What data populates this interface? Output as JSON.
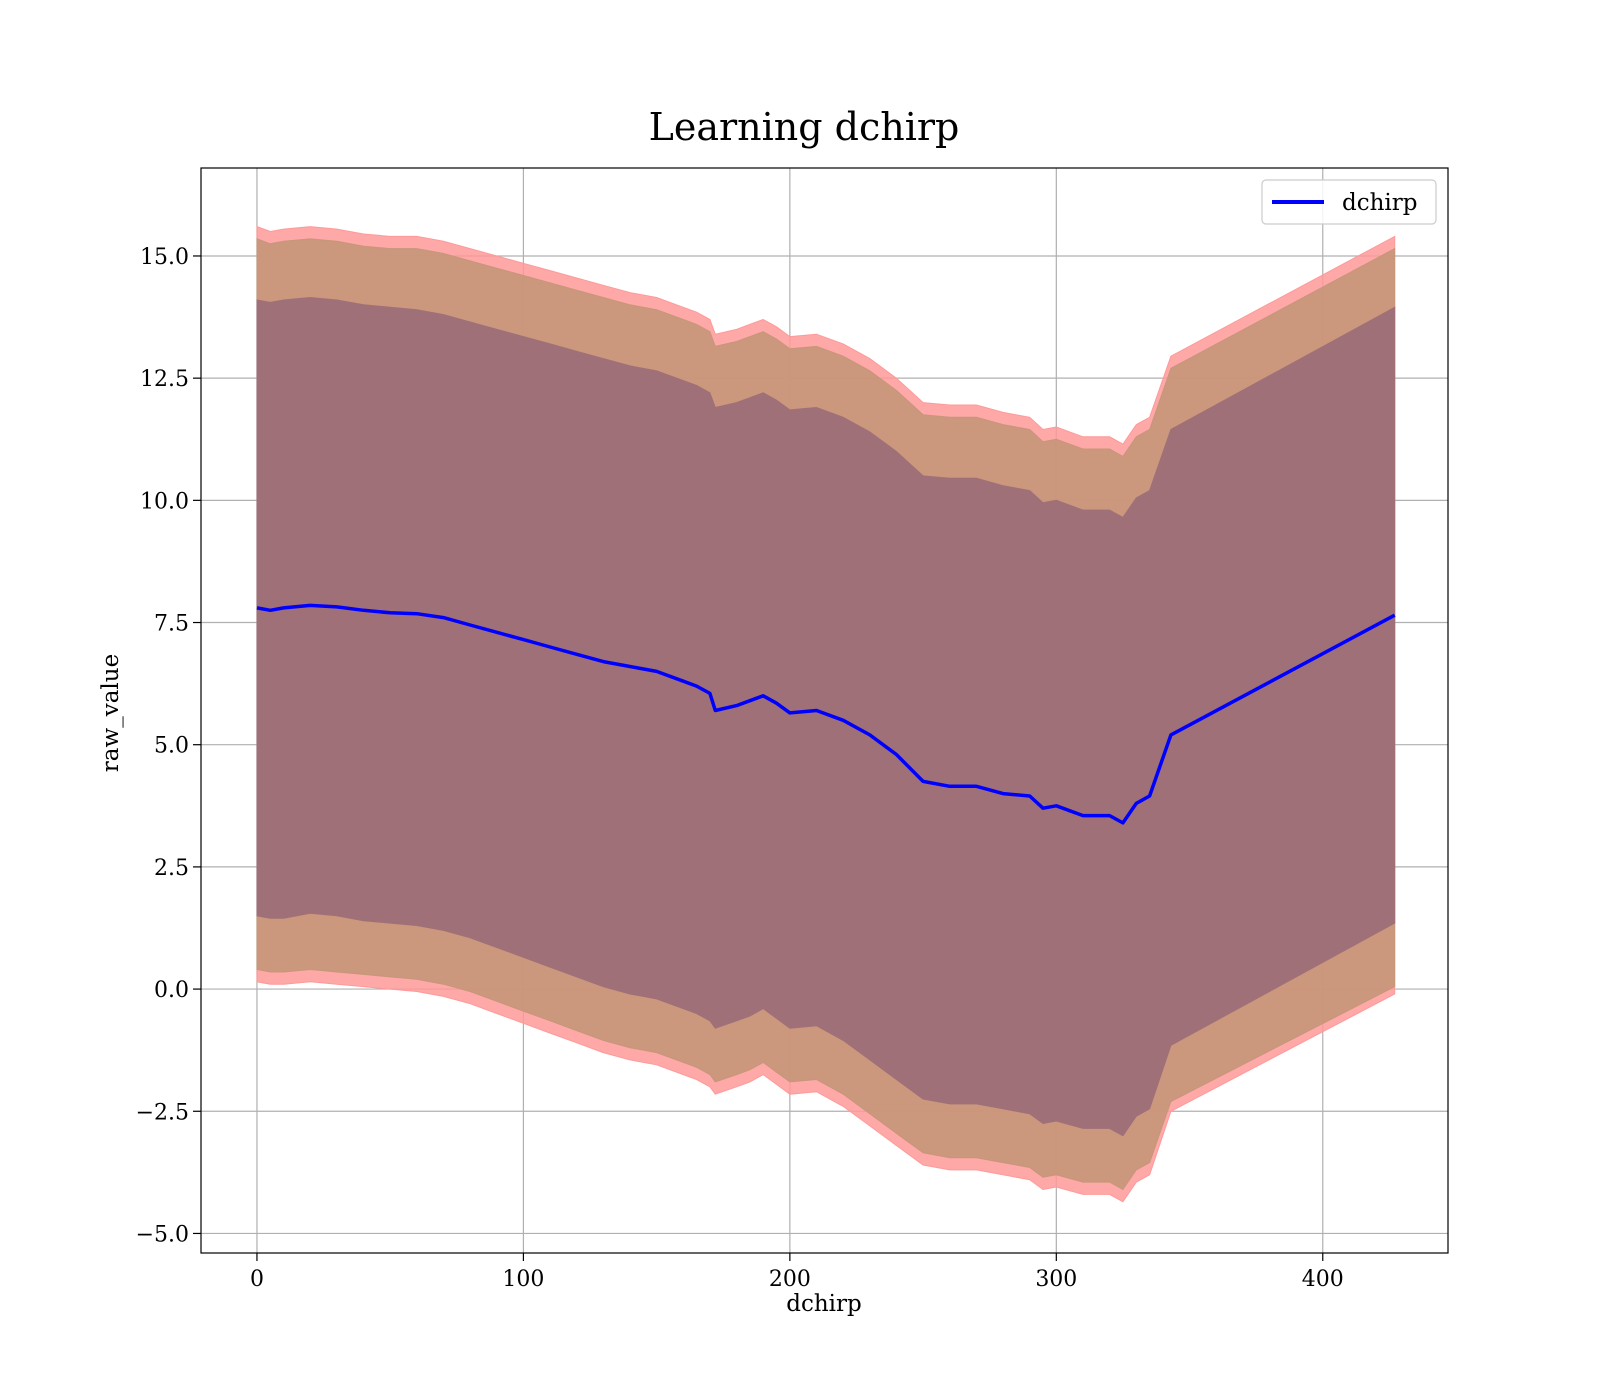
{
  "chart_data": {
    "type": "line",
    "title": "Learning dchirp",
    "xlabel": "dchirp",
    "ylabel": "raw_value",
    "xlim": [
      -21,
      447
    ],
    "ylim": [
      -5.4,
      16.8
    ],
    "x_ticks": [
      0,
      100,
      200,
      300,
      400
    ],
    "x_tick_labels": [
      "0",
      "100",
      "200",
      "300",
      "400"
    ],
    "y_ticks": [
      -5.0,
      -2.5,
      0.0,
      2.5,
      5.0,
      7.5,
      10.0,
      12.5,
      15.0
    ],
    "y_tick_labels": [
      "−5.0",
      "−2.5",
      "0.0",
      "2.5",
      "5.0",
      "7.5",
      "10.0",
      "12.5",
      "15.0"
    ],
    "grid": true,
    "legend": {
      "position": "top-right",
      "entries": [
        "dchirp"
      ]
    },
    "colors": {
      "line": "#0000ff",
      "band_outer": "#ff9999",
      "band_middle": "#c8967a",
      "band_inner": "#a07078"
    },
    "series": [
      {
        "name": "dchirp",
        "x": [
          0,
          5,
          10,
          20,
          30,
          40,
          50,
          60,
          70,
          80,
          90,
          100,
          110,
          120,
          130,
          140,
          150,
          160,
          165,
          170,
          172,
          180,
          185,
          190,
          195,
          200,
          210,
          220,
          230,
          240,
          250,
          260,
          270,
          280,
          290,
          295,
          300,
          310,
          320,
          325,
          330,
          335,
          343,
          427
        ],
        "y": [
          7.8,
          7.75,
          7.8,
          7.85,
          7.82,
          7.75,
          7.7,
          7.68,
          7.6,
          7.45,
          7.3,
          7.15,
          7.0,
          6.85,
          6.7,
          6.6,
          6.5,
          6.3,
          6.2,
          6.05,
          5.7,
          5.8,
          5.9,
          6.0,
          5.85,
          5.65,
          5.7,
          5.5,
          5.2,
          4.8,
          4.25,
          4.15,
          4.15,
          4.0,
          3.95,
          3.7,
          3.75,
          3.55,
          3.55,
          3.4,
          3.8,
          3.95,
          5.2,
          7.65
        ]
      }
    ],
    "bands": [
      {
        "level": "outer",
        "lower": [
          0.15,
          0.1,
          0.1,
          0.15,
          0.1,
          0.05,
          0.0,
          -0.05,
          -0.15,
          -0.3,
          -0.5,
          -0.7,
          -0.9,
          -1.1,
          -1.3,
          -1.45,
          -1.55,
          -1.75,
          -1.85,
          -2.0,
          -2.15,
          -2.0,
          -1.9,
          -1.75,
          -1.95,
          -2.15,
          -2.1,
          -2.4,
          -2.8,
          -3.2,
          -3.6,
          -3.7,
          -3.7,
          -3.8,
          -3.9,
          -4.1,
          -4.05,
          -4.2,
          -4.2,
          -4.35,
          -3.95,
          -3.8,
          -2.5,
          -0.1
        ],
        "upper": [
          15.6,
          15.5,
          15.55,
          15.6,
          15.55,
          15.45,
          15.4,
          15.4,
          15.3,
          15.15,
          15.0,
          14.85,
          14.7,
          14.55,
          14.4,
          14.25,
          14.15,
          13.95,
          13.85,
          13.7,
          13.4,
          13.5,
          13.6,
          13.7,
          13.55,
          13.35,
          13.4,
          13.2,
          12.9,
          12.5,
          12.0,
          11.95,
          11.95,
          11.8,
          11.7,
          11.45,
          11.5,
          11.3,
          11.3,
          11.15,
          11.55,
          11.7,
          12.95,
          15.4
        ]
      },
      {
        "level": "middle",
        "lower": [
          0.4,
          0.35,
          0.35,
          0.4,
          0.35,
          0.3,
          0.25,
          0.2,
          0.1,
          -0.05,
          -0.25,
          -0.45,
          -0.65,
          -0.85,
          -1.05,
          -1.2,
          -1.3,
          -1.5,
          -1.6,
          -1.75,
          -1.9,
          -1.75,
          -1.65,
          -1.5,
          -1.7,
          -1.9,
          -1.85,
          -2.15,
          -2.55,
          -2.95,
          -3.35,
          -3.45,
          -3.45,
          -3.55,
          -3.65,
          -3.85,
          -3.8,
          -3.95,
          -3.95,
          -4.1,
          -3.7,
          -3.55,
          -2.3,
          0.05
        ],
        "upper": [
          15.35,
          15.25,
          15.3,
          15.35,
          15.3,
          15.2,
          15.15,
          15.15,
          15.05,
          14.9,
          14.75,
          14.6,
          14.45,
          14.3,
          14.15,
          14.0,
          13.9,
          13.7,
          13.6,
          13.45,
          13.15,
          13.25,
          13.35,
          13.45,
          13.3,
          13.1,
          13.15,
          12.95,
          12.65,
          12.25,
          11.75,
          11.7,
          11.7,
          11.55,
          11.45,
          11.2,
          11.25,
          11.05,
          11.05,
          10.9,
          11.3,
          11.45,
          12.7,
          15.15
        ]
      },
      {
        "level": "inner",
        "lower": [
          1.5,
          1.45,
          1.45,
          1.55,
          1.5,
          1.4,
          1.35,
          1.3,
          1.2,
          1.05,
          0.85,
          0.65,
          0.45,
          0.25,
          0.05,
          -0.1,
          -0.2,
          -0.4,
          -0.5,
          -0.65,
          -0.8,
          -0.65,
          -0.55,
          -0.4,
          -0.6,
          -0.8,
          -0.75,
          -1.05,
          -1.45,
          -1.85,
          -2.25,
          -2.35,
          -2.35,
          -2.45,
          -2.55,
          -2.75,
          -2.7,
          -2.85,
          -2.85,
          -3.0,
          -2.6,
          -2.45,
          -1.15,
          1.35
        ],
        "upper": [
          14.1,
          14.05,
          14.1,
          14.15,
          14.1,
          14.0,
          13.95,
          13.9,
          13.8,
          13.65,
          13.5,
          13.35,
          13.2,
          13.05,
          12.9,
          12.75,
          12.65,
          12.45,
          12.35,
          12.2,
          11.9,
          12.0,
          12.1,
          12.2,
          12.05,
          11.85,
          11.9,
          11.7,
          11.4,
          11.0,
          10.5,
          10.45,
          10.45,
          10.3,
          10.2,
          9.95,
          10.0,
          9.8,
          9.8,
          9.65,
          10.05,
          10.2,
          11.45,
          13.95
        ]
      }
    ]
  }
}
